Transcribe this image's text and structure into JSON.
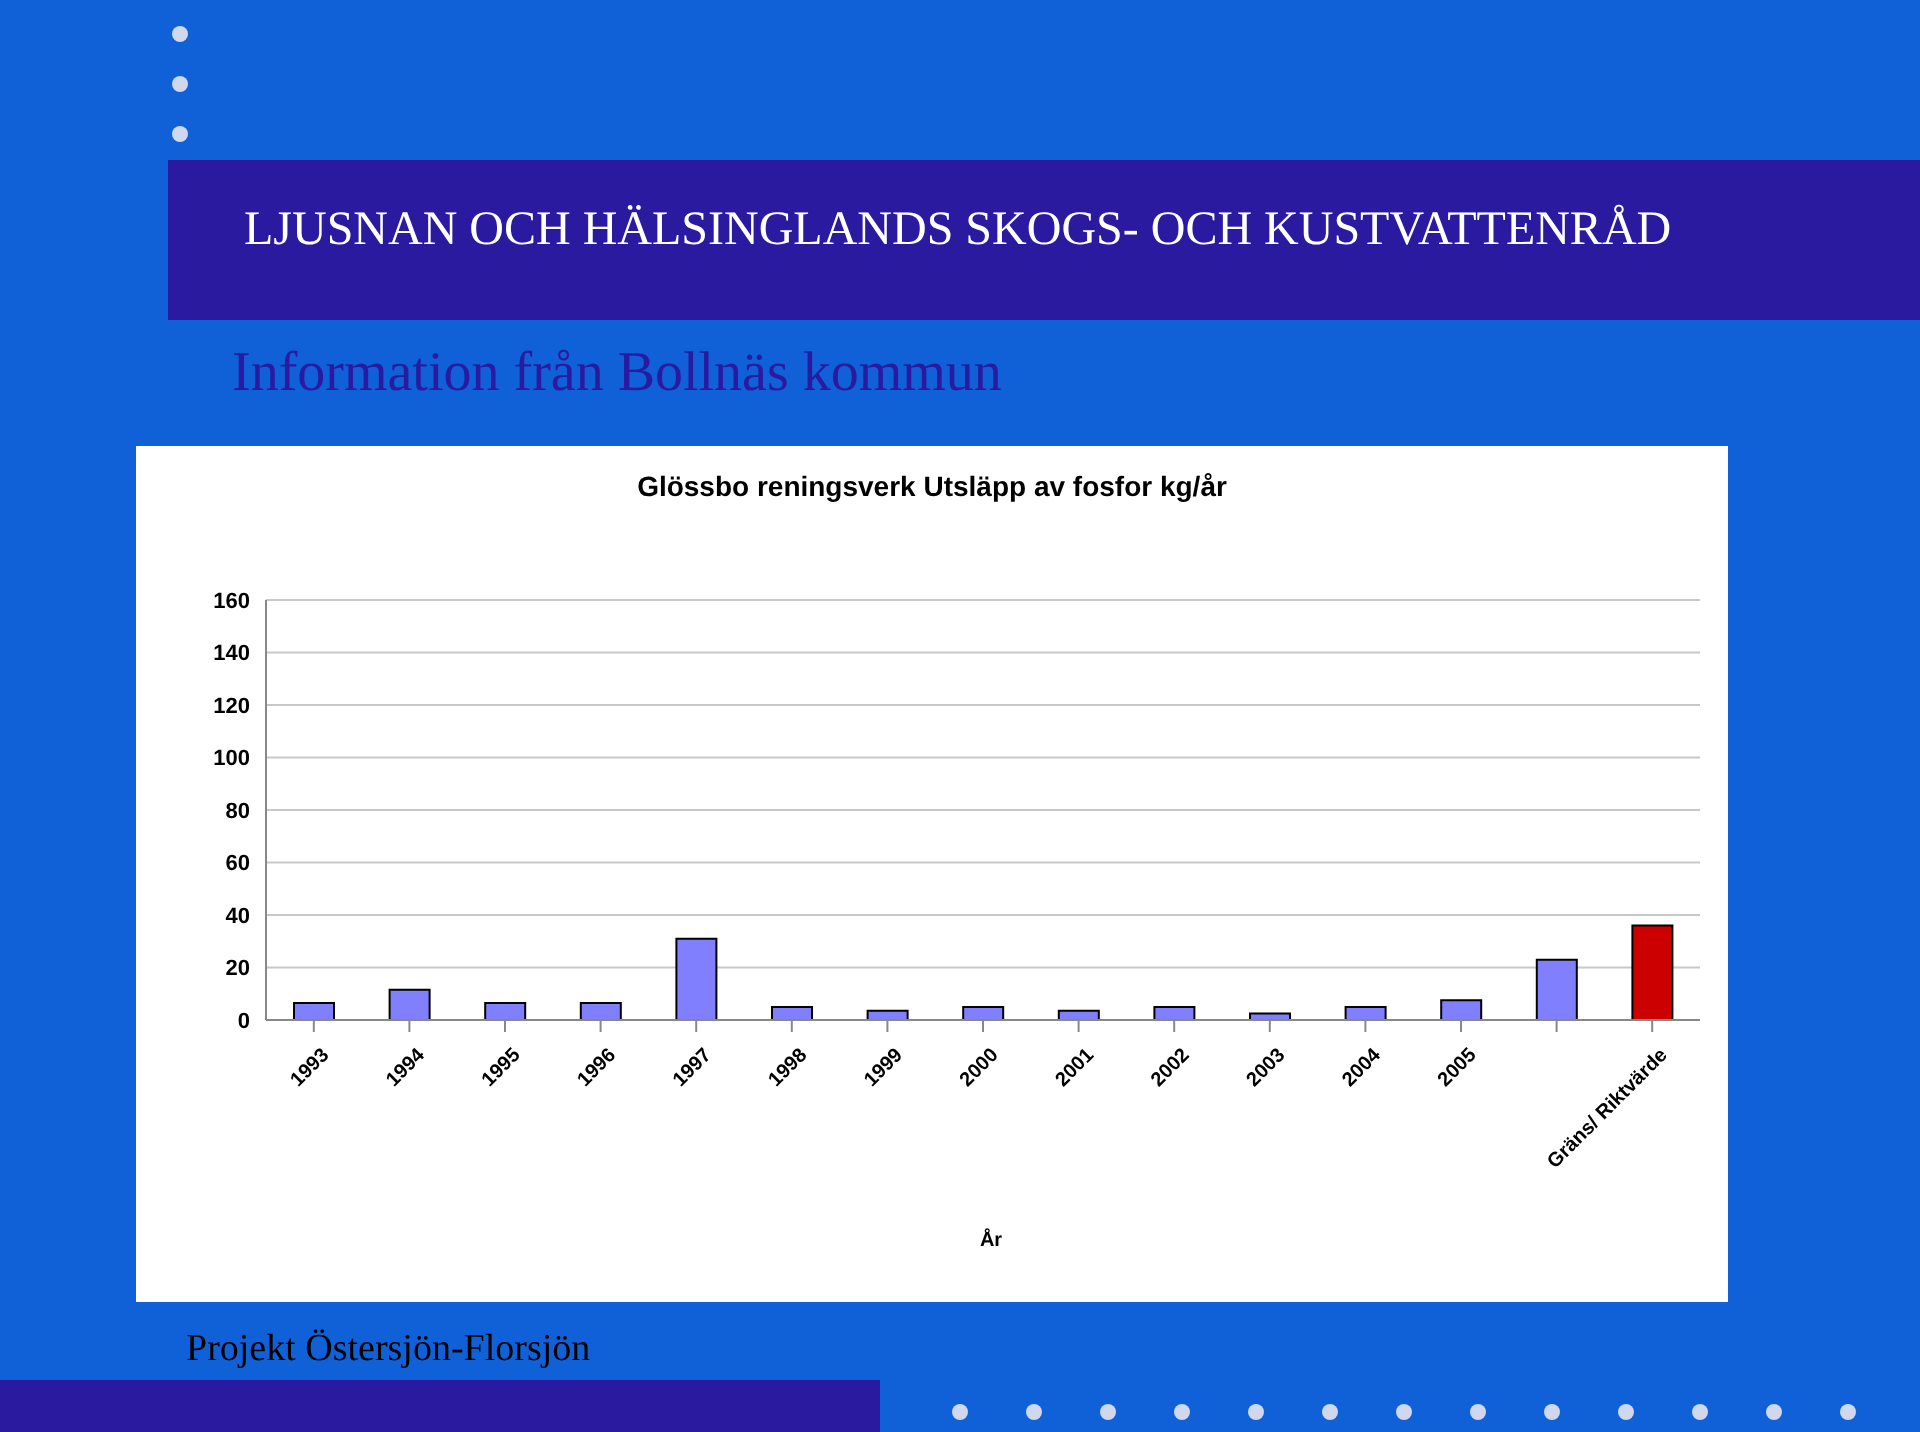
{
  "chart_data": {
    "type": "bar",
    "title": "Glössbo reningsverk Utsläpp av fosfor kg/år",
    "xlabel": "År",
    "annotations": [
      "LJUSNAN OCH HÄLSINGLANDS SKOGS- OCH KUSTVATTENRÅD",
      "Information från Bollnäs kommun",
      "Projekt Östersjön-Florsjön"
    ],
    "categories": [
      "1993",
      "1994",
      "1995",
      "1996",
      "1997",
      "1998",
      "1999",
      "2000",
      "2001",
      "2002",
      "2003",
      "2004",
      "2005",
      null,
      "Gräns/ Riktvärde"
    ],
    "values": [
      6.5,
      11.5,
      6.5,
      6.5,
      31,
      5,
      3.5,
      5,
      3.5,
      5,
      2.5,
      5,
      7.5,
      23,
      36
    ],
    "colors": [
      "#8080ff",
      "#8080ff",
      "#8080ff",
      "#8080ff",
      "#8080ff",
      "#8080ff",
      "#8080ff",
      "#8080ff",
      "#8080ff",
      "#8080ff",
      "#8080ff",
      "#8080ff",
      "#8080ff",
      "#8080ff",
      "#cc0000"
    ],
    "ylim": [
      0,
      160
    ],
    "yticks": [
      0,
      20,
      40,
      60,
      80,
      100,
      120,
      140,
      160
    ],
    "grid": "y",
    "legend": false
  }
}
